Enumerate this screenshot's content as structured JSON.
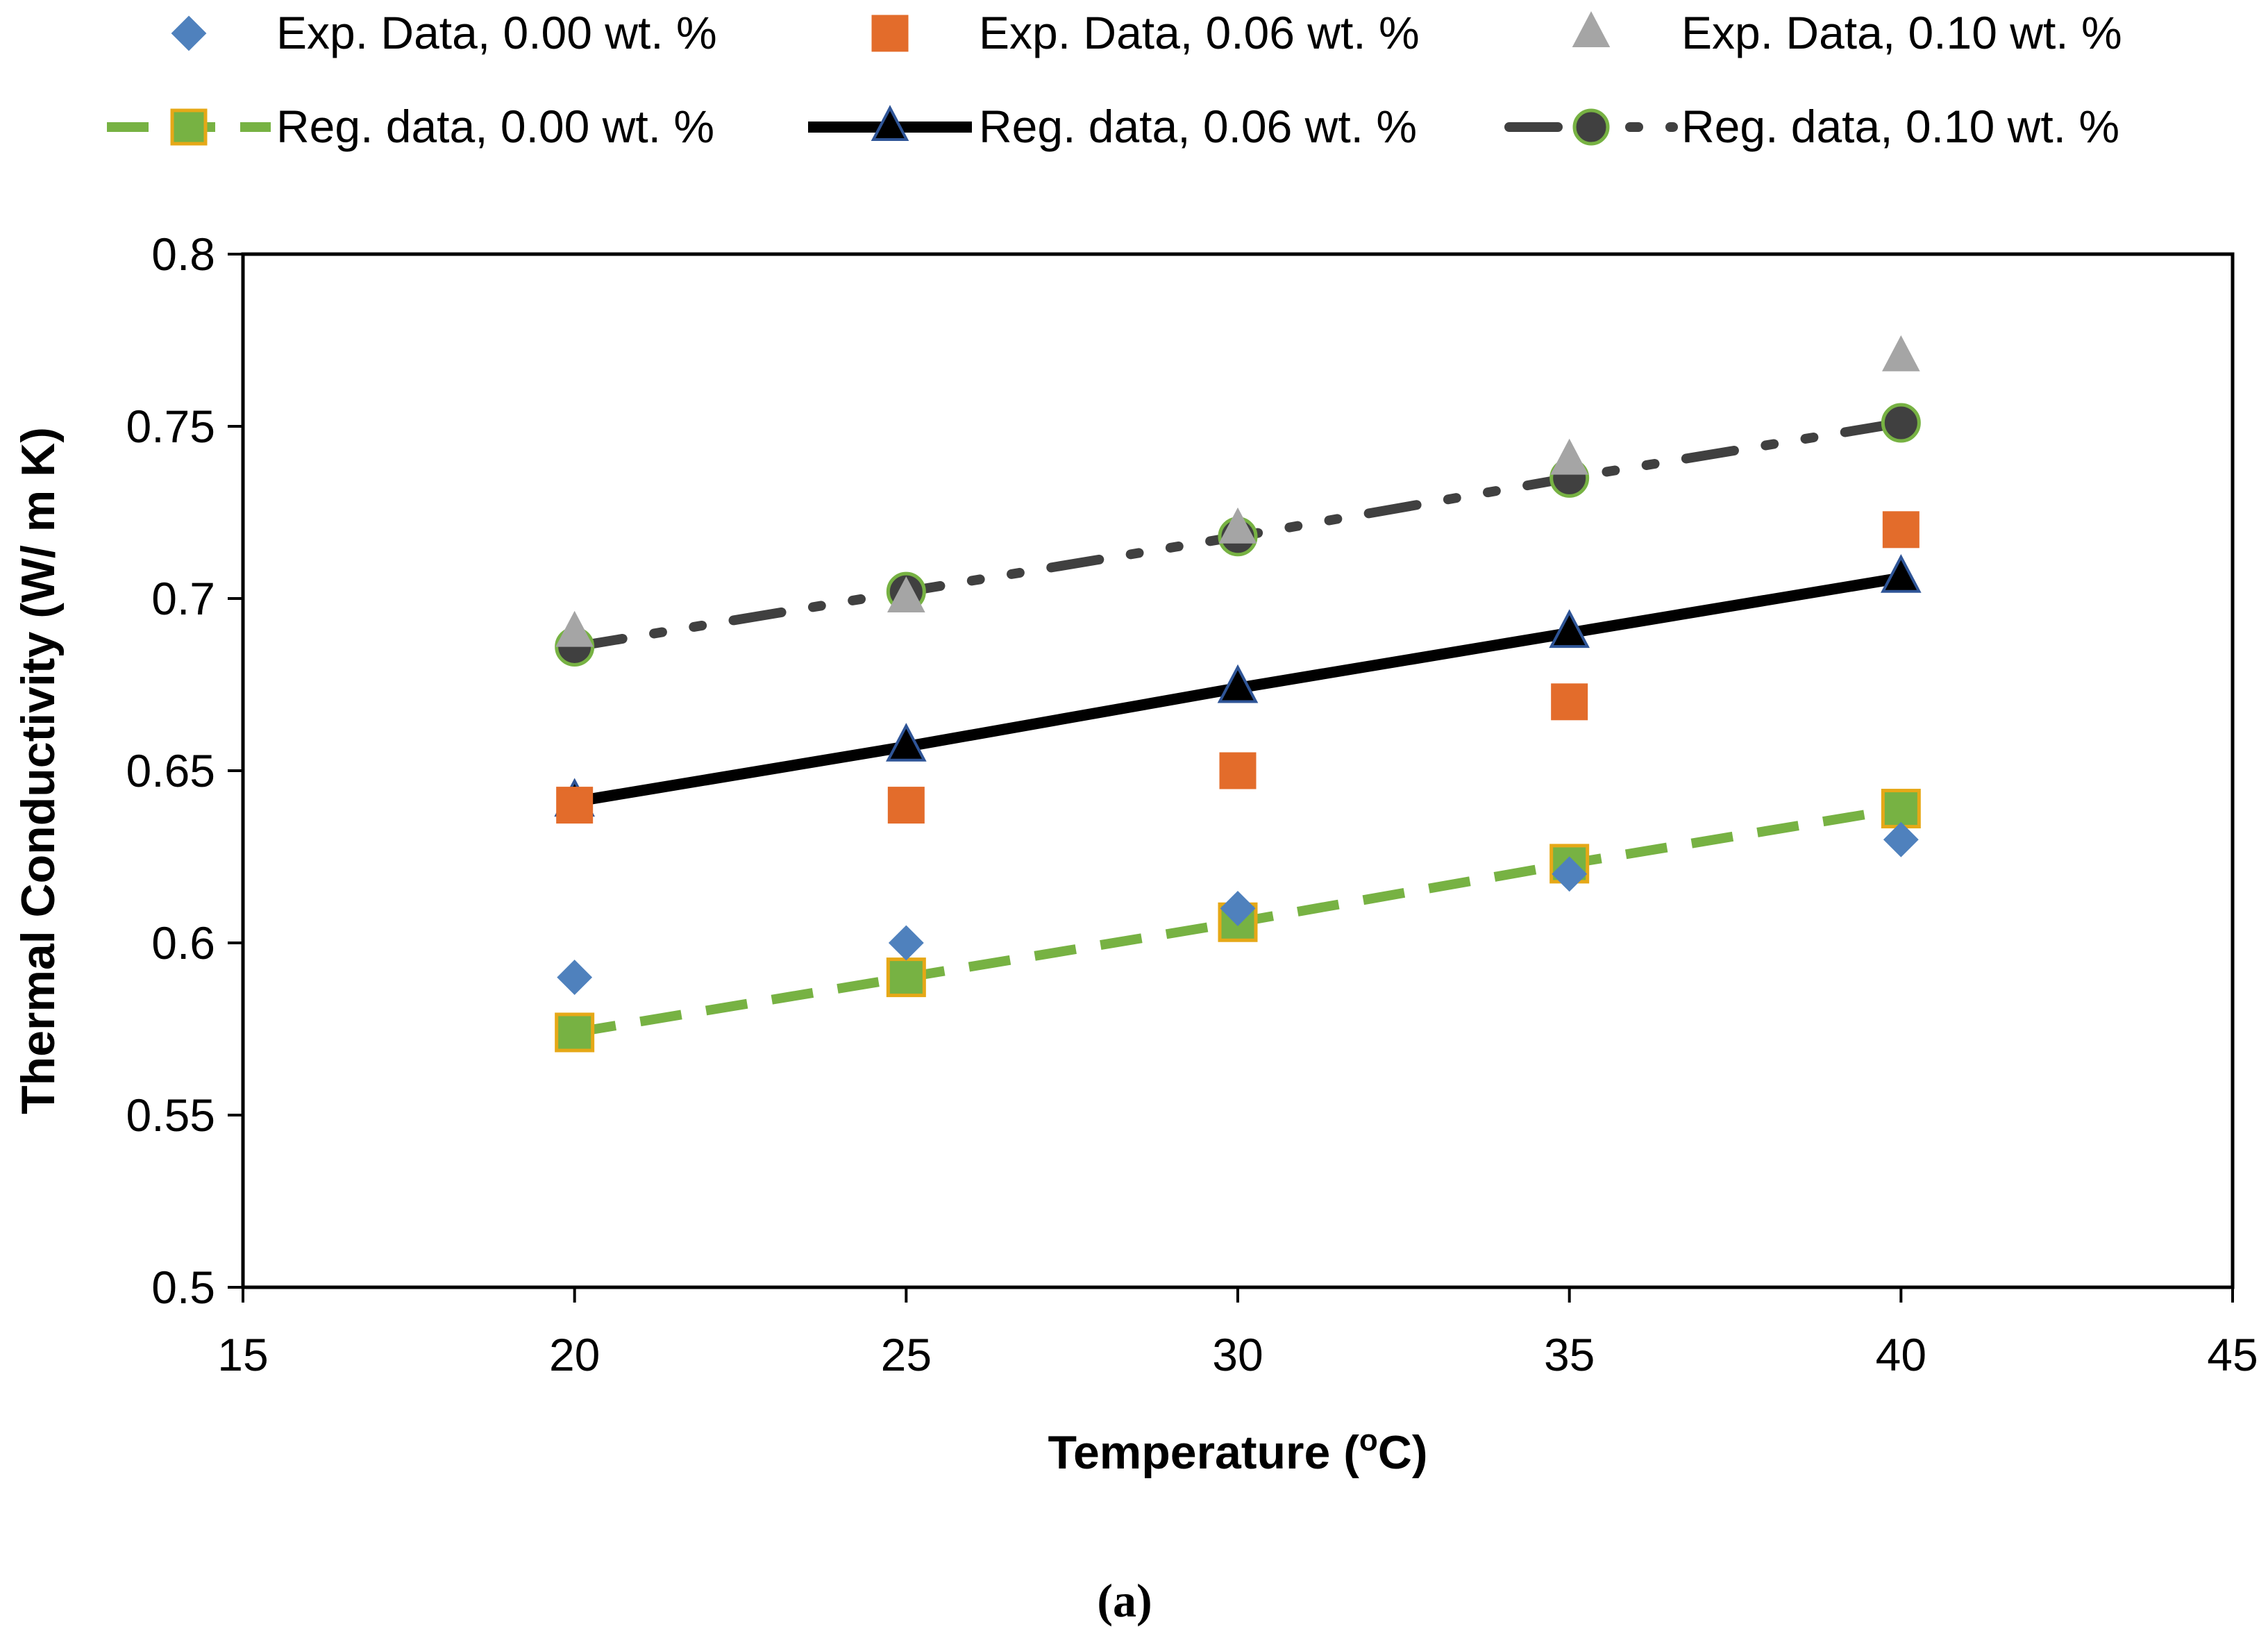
{
  "chart_data": {
    "type": "scatter",
    "title": "",
    "xlabel": "Temperature (",
    "xlabel_sup": "o",
    "xlabel_tail": "C)",
    "ylabel": "Thermal Conductivity (W/ m K)",
    "xlim": [
      15,
      45
    ],
    "ylim": [
      0.5,
      0.8
    ],
    "xticks": [
      15,
      20,
      25,
      30,
      35,
      40,
      45
    ],
    "yticks": [
      0.5,
      0.55,
      0.6,
      0.65,
      0.7,
      0.75,
      0.8
    ],
    "x_tick_labels": [
      "15",
      "20",
      "25",
      "30",
      "35",
      "40",
      "45"
    ],
    "y_tick_labels": [
      "0.5",
      "0.55",
      "0.6",
      "0.65",
      "0.7",
      "0.75",
      "0.8"
    ],
    "caption": "(a)",
    "legend_position": "top",
    "series": [
      {
        "name": "Exp. Data, 0.00 wt. %",
        "kind": "marker",
        "marker": "diamond",
        "color": "#4F81BD",
        "stroke": "#4F81BD",
        "x": [
          20,
          25,
          30,
          35,
          40
        ],
        "y": [
          0.59,
          0.6,
          0.61,
          0.62,
          0.63
        ]
      },
      {
        "name": "Exp. Data, 0.06 wt. %",
        "kind": "marker",
        "marker": "square",
        "color": "#E36C2B",
        "stroke": "#E36C2B",
        "x": [
          20,
          25,
          30,
          35,
          40
        ],
        "y": [
          0.64,
          0.64,
          0.65,
          0.67,
          0.72
        ]
      },
      {
        "name": "Exp. Data, 0.10 wt. %",
        "kind": "marker",
        "marker": "triangle",
        "color": "#A5A5A5",
        "stroke": "#A5A5A5",
        "x": [
          20,
          25,
          30,
          35,
          40
        ],
        "y": [
          0.69,
          0.7,
          0.72,
          0.74,
          0.77
        ]
      },
      {
        "name": "Reg. data, 0.00 wt. %",
        "kind": "line",
        "line_style": "dash",
        "line_color": "#77B243",
        "marker": "square",
        "color": "#77B243",
        "stroke": "#E6A817",
        "x": [
          20,
          25,
          30,
          35,
          40
        ],
        "y": [
          0.574,
          0.59,
          0.606,
          0.623,
          0.639
        ]
      },
      {
        "name": "Reg. data, 0.06 wt. %",
        "kind": "line",
        "line_style": "solid",
        "line_color": "#000000",
        "marker": "triangle",
        "color": "#000000",
        "stroke": "#2F5597",
        "x": [
          20,
          25,
          30,
          35,
          40
        ],
        "y": [
          0.641,
          0.657,
          0.674,
          0.69,
          0.706
        ]
      },
      {
        "name": "Reg. data, 0.10 wt. %",
        "kind": "line",
        "line_style": "dashdotdot",
        "line_color": "#404040",
        "marker": "circle",
        "color": "#404040",
        "stroke": "#77B243",
        "x": [
          20,
          25,
          30,
          35,
          40
        ],
        "y": [
          0.686,
          0.702,
          0.718,
          0.735,
          0.751
        ]
      }
    ]
  }
}
